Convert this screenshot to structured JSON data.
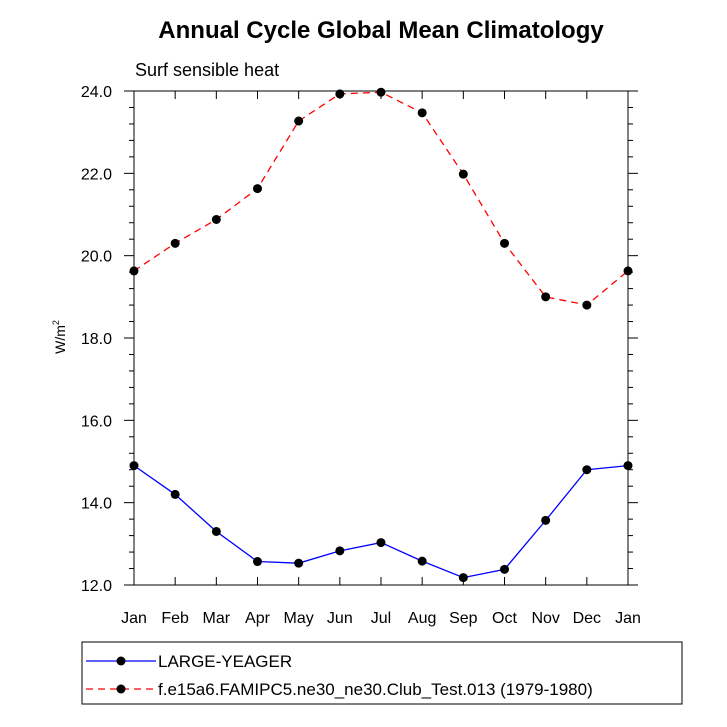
{
  "chart_data": {
    "type": "line",
    "title": "Annual Cycle Global Mean Climatology",
    "subtitle": "Surf sensible heat",
    "xlabel": "",
    "ylabel_base": "W/m",
    "ylabel_sup": "2",
    "categories": [
      "Jan",
      "Feb",
      "Mar",
      "Apr",
      "May",
      "Jun",
      "Jul",
      "Aug",
      "Sep",
      "Oct",
      "Nov",
      "Dec",
      "Jan"
    ],
    "ylim": [
      12.0,
      24.0
    ],
    "yticks": [
      12.0,
      14.0,
      16.0,
      18.0,
      20.0,
      22.0,
      24.0
    ],
    "ytick_labels": [
      "12.0",
      "14.0",
      "16.0",
      "18.0",
      "20.0",
      "22.0",
      "24.0"
    ],
    "grid": false,
    "legend_position": "bottom",
    "series": [
      {
        "name": "LARGE-YEAGER",
        "color": "#0000ff",
        "line_style": "solid",
        "marker": "filled-circle",
        "values": [
          14.9,
          14.2,
          13.3,
          12.57,
          12.53,
          12.83,
          13.03,
          12.58,
          12.18,
          12.38,
          13.57,
          14.8,
          14.9
        ]
      },
      {
        "name": "f.e15a6.FAMIPC5.ne30_ne30.Club_Test.013 (1979-1980)",
        "color": "#ff0000",
        "line_style": "dashed",
        "marker": "filled-circle",
        "values": [
          19.63,
          20.3,
          20.88,
          21.63,
          23.27,
          23.93,
          23.97,
          23.47,
          21.98,
          20.3,
          19.0,
          18.8,
          19.63
        ]
      }
    ]
  }
}
